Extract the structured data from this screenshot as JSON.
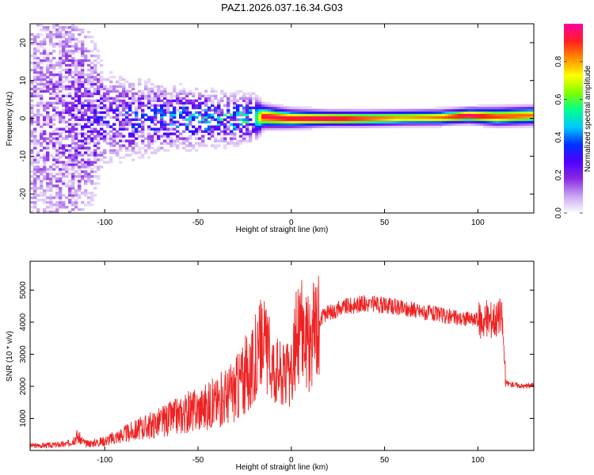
{
  "title": "PAZ1.2026.037.16.34.G03",
  "chart_data": [
    {
      "type": "heatmap",
      "title": "PAZ1.2026.037.16.34.G03",
      "xlabel": "Height of straight line (km)",
      "ylabel": "Frequency (Hz)",
      "xlim": [
        -140,
        130
      ],
      "ylim": [
        -25,
        25
      ],
      "xticks": [
        -100,
        -50,
        0,
        50,
        100
      ],
      "yticks": [
        -20,
        -10,
        0,
        10,
        20
      ],
      "colorbar": {
        "label": "Normalized spectral amplitude",
        "range": [
          0,
          1
        ],
        "ticks": [
          "0.0",
          "0.2",
          "0.4",
          "0.6",
          "0.8"
        ],
        "colors": [
          "#ffffff",
          "#c9a6f2",
          "#8a2be2",
          "#5000ff",
          "#0030ff",
          "#00c8ff",
          "#00ff90",
          "#80ff00",
          "#ffff00",
          "#ff9000",
          "#ff2020",
          "#ff00a0"
        ]
      },
      "band_profile": [
        {
          "x": -140,
          "center": 0,
          "spread": 25,
          "amp": 0.1
        },
        {
          "x": -120,
          "center": 0,
          "spread": 22,
          "amp": 0.15
        },
        {
          "x": -100,
          "center": 0,
          "spread": 6,
          "amp": 0.22
        },
        {
          "x": -80,
          "center": 0,
          "spread": 5,
          "amp": 0.25
        },
        {
          "x": -60,
          "center": 0,
          "spread": 4,
          "amp": 0.3
        },
        {
          "x": -40,
          "center": 0,
          "spread": 3.5,
          "amp": 0.35
        },
        {
          "x": -20,
          "center": 0,
          "spread": 3,
          "amp": 0.4
        },
        {
          "x": -15,
          "center": 0.5,
          "spread": 1.5,
          "amp": 0.95
        },
        {
          "x": 0,
          "center": 0,
          "spread": 1.2,
          "amp": 0.95
        },
        {
          "x": 20,
          "center": 0,
          "spread": 1,
          "amp": 1.0
        },
        {
          "x": 40,
          "center": 0,
          "spread": 1,
          "amp": 0.9
        },
        {
          "x": 60,
          "center": 0.2,
          "spread": 1,
          "amp": 0.8
        },
        {
          "x": 80,
          "center": 0.3,
          "spread": 1,
          "amp": 0.85
        },
        {
          "x": 95,
          "center": 0.8,
          "spread": 1,
          "amp": 1.0
        },
        {
          "x": 110,
          "center": 0.5,
          "spread": 1.2,
          "amp": 0.9
        },
        {
          "x": 130,
          "center": 0.8,
          "spread": 1.2,
          "amp": 0.85
        }
      ]
    },
    {
      "type": "line",
      "xlabel": "Height of straight line (km)",
      "ylabel": "SNR (10 * v/v)",
      "xlim": [
        -140,
        130
      ],
      "ylim": [
        0,
        5900
      ],
      "xticks": [
        -100,
        -50,
        0,
        50,
        100
      ],
      "yticks": [
        1000,
        2000,
        3000,
        4000,
        5000
      ],
      "color": "#ee2222",
      "series": [
        {
          "name": "SNR",
          "x": [
            -140,
            -130,
            -120,
            -115,
            -110,
            -100,
            -90,
            -80,
            -70,
            -60,
            -50,
            -40,
            -30,
            -25,
            -20,
            -17,
            -15,
            -12,
            -10,
            -5,
            0,
            3,
            5,
            8,
            10,
            13,
            15,
            20,
            30,
            40,
            50,
            60,
            70,
            80,
            90,
            100,
            105,
            110,
            113,
            115,
            120,
            125,
            130
          ],
          "values": [
            150,
            160,
            200,
            450,
            200,
            300,
            500,
            700,
            900,
            1100,
            1300,
            1500,
            1900,
            2300,
            2500,
            3200,
            3400,
            2900,
            2700,
            2400,
            2300,
            3600,
            3900,
            3500,
            3200,
            4000,
            4100,
            4300,
            4500,
            4580,
            4520,
            4420,
            4330,
            4220,
            4120,
            4060,
            4100,
            4150,
            4120,
            2100,
            2050,
            2000,
            2050
          ]
        }
      ]
    }
  ]
}
